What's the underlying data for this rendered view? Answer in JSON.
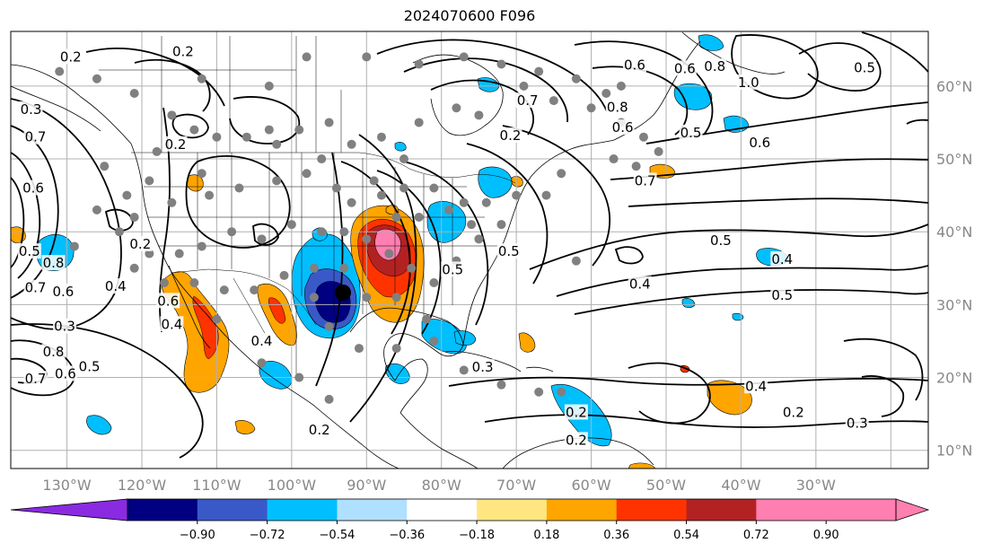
{
  "title": "2024070600 F096",
  "map": {
    "lon_labels": [
      "130°W",
      "120°W",
      "110°W",
      "100°W",
      "90°W",
      "80°W",
      "70°W",
      "60°W",
      "50°W",
      "40°W",
      "30°W"
    ],
    "lat_labels": [
      "60°N",
      "50°N",
      "40°N",
      "30°N",
      "20°N",
      "10°N"
    ],
    "grid": true
  },
  "contour_labels": [
    {
      "text": "0.2",
      "lon": -129.5,
      "lat": 64.0
    },
    {
      "text": "0.2",
      "lon": -114.5,
      "lat": 64.7
    },
    {
      "text": "0.3",
      "lon": -134.8,
      "lat": 56.8
    },
    {
      "text": "0.7",
      "lon": -134.2,
      "lat": 53.0
    },
    {
      "text": "0.2",
      "lon": -115.5,
      "lat": 52.0
    },
    {
      "text": "0.6",
      "lon": -134.5,
      "lat": 46.0
    },
    {
      "text": "0.5",
      "lon": -135.0,
      "lat": 37.3
    },
    {
      "text": "0.8",
      "lon": -131.8,
      "lat": 35.7
    },
    {
      "text": "0.7",
      "lon": -134.2,
      "lat": 32.3
    },
    {
      "text": "0.6",
      "lon": -130.5,
      "lat": 31.8
    },
    {
      "text": "0.4",
      "lon": -123.5,
      "lat": 32.5
    },
    {
      "text": "0.3",
      "lon": -130.3,
      "lat": 27.0
    },
    {
      "text": "0.4",
      "lon": -116.0,
      "lat": 27.3
    },
    {
      "text": "0.4",
      "lon": -104.0,
      "lat": 25.0
    },
    {
      "text": "0.8",
      "lon": -131.8,
      "lat": 23.5
    },
    {
      "text": "0.7",
      "lon": -134.2,
      "lat": 19.8
    },
    {
      "text": "0.6",
      "lon": -130.2,
      "lat": 20.5
    },
    {
      "text": "0.5",
      "lon": -127.0,
      "lat": 21.5
    },
    {
      "text": "0.2",
      "lon": -120.2,
      "lat": 38.3
    },
    {
      "text": "0.6",
      "lon": -116.5,
      "lat": 30.5
    },
    {
      "text": "0.2",
      "lon": -96.3,
      "lat": 12.8
    },
    {
      "text": "0.7",
      "lon": -68.5,
      "lat": 58.0
    },
    {
      "text": "0.2",
      "lon": -70.8,
      "lat": 53.2
    },
    {
      "text": "0.8",
      "lon": -56.5,
      "lat": 57.1
    },
    {
      "text": "0.6",
      "lon": -55.8,
      "lat": 54.3
    },
    {
      "text": "0.5",
      "lon": -46.7,
      "lat": 53.6
    },
    {
      "text": "0.6",
      "lon": -54.2,
      "lat": 62.9
    },
    {
      "text": "0.6",
      "lon": -47.5,
      "lat": 62.4
    },
    {
      "text": "0.8",
      "lon": -43.5,
      "lat": 62.7
    },
    {
      "text": "1.0",
      "lon": -39.0,
      "lat": 60.5
    },
    {
      "text": "0.5",
      "lon": -23.5,
      "lat": 62.5
    },
    {
      "text": "0.6",
      "lon": -37.5,
      "lat": 52.2
    },
    {
      "text": "0.7",
      "lon": -52.8,
      "lat": 47.0
    },
    {
      "text": "0.5",
      "lon": -78.5,
      "lat": 34.8
    },
    {
      "text": "0.5",
      "lon": -71.0,
      "lat": 37.3
    },
    {
      "text": "0.5",
      "lon": -42.7,
      "lat": 38.8
    },
    {
      "text": "0.4",
      "lon": -34.5,
      "lat": 36.2
    },
    {
      "text": "0.4",
      "lon": -53.5,
      "lat": 32.8
    },
    {
      "text": "0.5",
      "lon": -34.5,
      "lat": 31.3
    },
    {
      "text": "0.3",
      "lon": -74.5,
      "lat": 21.4
    },
    {
      "text": "0.4",
      "lon": -38.0,
      "lat": 18.8
    },
    {
      "text": "0.2",
      "lon": -62.0,
      "lat": 15.2
    },
    {
      "text": "0.2",
      "lon": -62.0,
      "lat": 11.4
    },
    {
      "text": "0.2",
      "lon": -33.0,
      "lat": 15.2
    },
    {
      "text": "0.3",
      "lon": -24.5,
      "lat": 13.7
    }
  ],
  "colorbar": {
    "ticks": [
      "−0.90",
      "−0.72",
      "−0.54",
      "−0.36",
      "−0.18",
      "0.18",
      "0.36",
      "0.54",
      "0.72",
      "0.90"
    ],
    "colors": [
      "#8a2be2",
      "#000080",
      "#3a59c9",
      "#00bfff",
      "#b0e0ff",
      "#ffffff",
      "#ffe680",
      "#ffa500",
      "#ff3300",
      "#b22222",
      "#ff7fb0",
      "#ff7fb0"
    ],
    "extend": "both"
  },
  "stations": [
    [
      -131,
      62
    ],
    [
      -126,
      61
    ],
    [
      -121,
      59
    ],
    [
      -116,
      56
    ],
    [
      -113,
      54
    ],
    [
      -110,
      53
    ],
    [
      -106,
      53
    ],
    [
      -103,
      54
    ],
    [
      -99,
      54
    ],
    [
      -95,
      55
    ],
    [
      -92,
      52
    ],
    [
      -88,
      53
    ],
    [
      -85,
      50
    ],
    [
      -83,
      55
    ],
    [
      -78,
      57
    ],
    [
      -75,
      56
    ],
    [
      -69,
      60
    ],
    [
      -65,
      58
    ],
    [
      -60,
      57
    ],
    [
      -56,
      55
    ],
    [
      -53,
      53
    ],
    [
      -51,
      51
    ],
    [
      -57,
      50
    ],
    [
      -64,
      48
    ],
    [
      -66,
      45
    ],
    [
      -70,
      45
    ],
    [
      -74,
      44
    ],
    [
      -76,
      41
    ],
    [
      -79,
      43
    ],
    [
      -83,
      42
    ],
    [
      -86,
      42
    ],
    [
      -88,
      45
    ],
    [
      -92,
      44
    ],
    [
      -96,
      40
    ],
    [
      -100,
      41
    ],
    [
      -104,
      39
    ],
    [
      -108,
      40
    ],
    [
      -112,
      38
    ],
    [
      -115,
      37
    ],
    [
      -119,
      37
    ],
    [
      -123,
      40
    ],
    [
      -122,
      45
    ],
    [
      -119,
      47
    ],
    [
      -116,
      44
    ],
    [
      -111,
      45
    ],
    [
      -107,
      46
    ],
    [
      -102,
      47
    ],
    [
      -98,
      48
    ],
    [
      -94,
      46
    ],
    [
      -90,
      39
    ],
    [
      -87,
      37
    ],
    [
      -84,
      35
    ],
    [
      -81,
      33
    ],
    [
      -78,
      36
    ],
    [
      -82,
      28
    ],
    [
      -86,
      31
    ],
    [
      -90,
      31
    ],
    [
      -93,
      35
    ],
    [
      -97,
      35
    ],
    [
      -101,
      34
    ],
    [
      -105,
      32
    ],
    [
      -109,
      32
    ],
    [
      -113,
      33
    ],
    [
      -117,
      33
    ],
    [
      -121,
      35
    ],
    [
      -125,
      49
    ],
    [
      -118,
      51
    ],
    [
      -112,
      48
    ],
    [
      -102,
      52
    ],
    [
      -96,
      50
    ],
    [
      -72,
      41
    ],
    [
      -75,
      39
    ],
    [
      -77,
      44
    ],
    [
      -81,
      46
    ],
    [
      -85,
      46
    ],
    [
      -89,
      47
    ],
    [
      -93,
      40
    ],
    [
      -97,
      31
    ],
    [
      -95,
      27
    ],
    [
      -91,
      24
    ],
    [
      -86,
      24
    ],
    [
      -81,
      25
    ],
    [
      -77,
      21
    ],
    [
      -72,
      19
    ],
    [
      -67,
      18
    ],
    [
      -64,
      18
    ],
    [
      -61,
      15
    ],
    [
      -99,
      20
    ],
    [
      -95,
      17
    ],
    [
      -104,
      22
    ],
    [
      -110,
      28
    ],
    [
      -62,
      36
    ],
    [
      -121,
      42
    ],
    [
      -126,
      43
    ],
    [
      -129,
      38
    ],
    [
      -103,
      60
    ],
    [
      -112,
      61
    ],
    [
      -98,
      64
    ],
    [
      -90,
      64
    ],
    [
      -83,
      63
    ],
    [
      -77,
      64
    ],
    [
      -72,
      63
    ],
    [
      -67,
      62
    ],
    [
      -62,
      61
    ],
    [
      -58,
      59
    ],
    [
      -56,
      60
    ],
    [
      -54,
      49
    ]
  ]
}
